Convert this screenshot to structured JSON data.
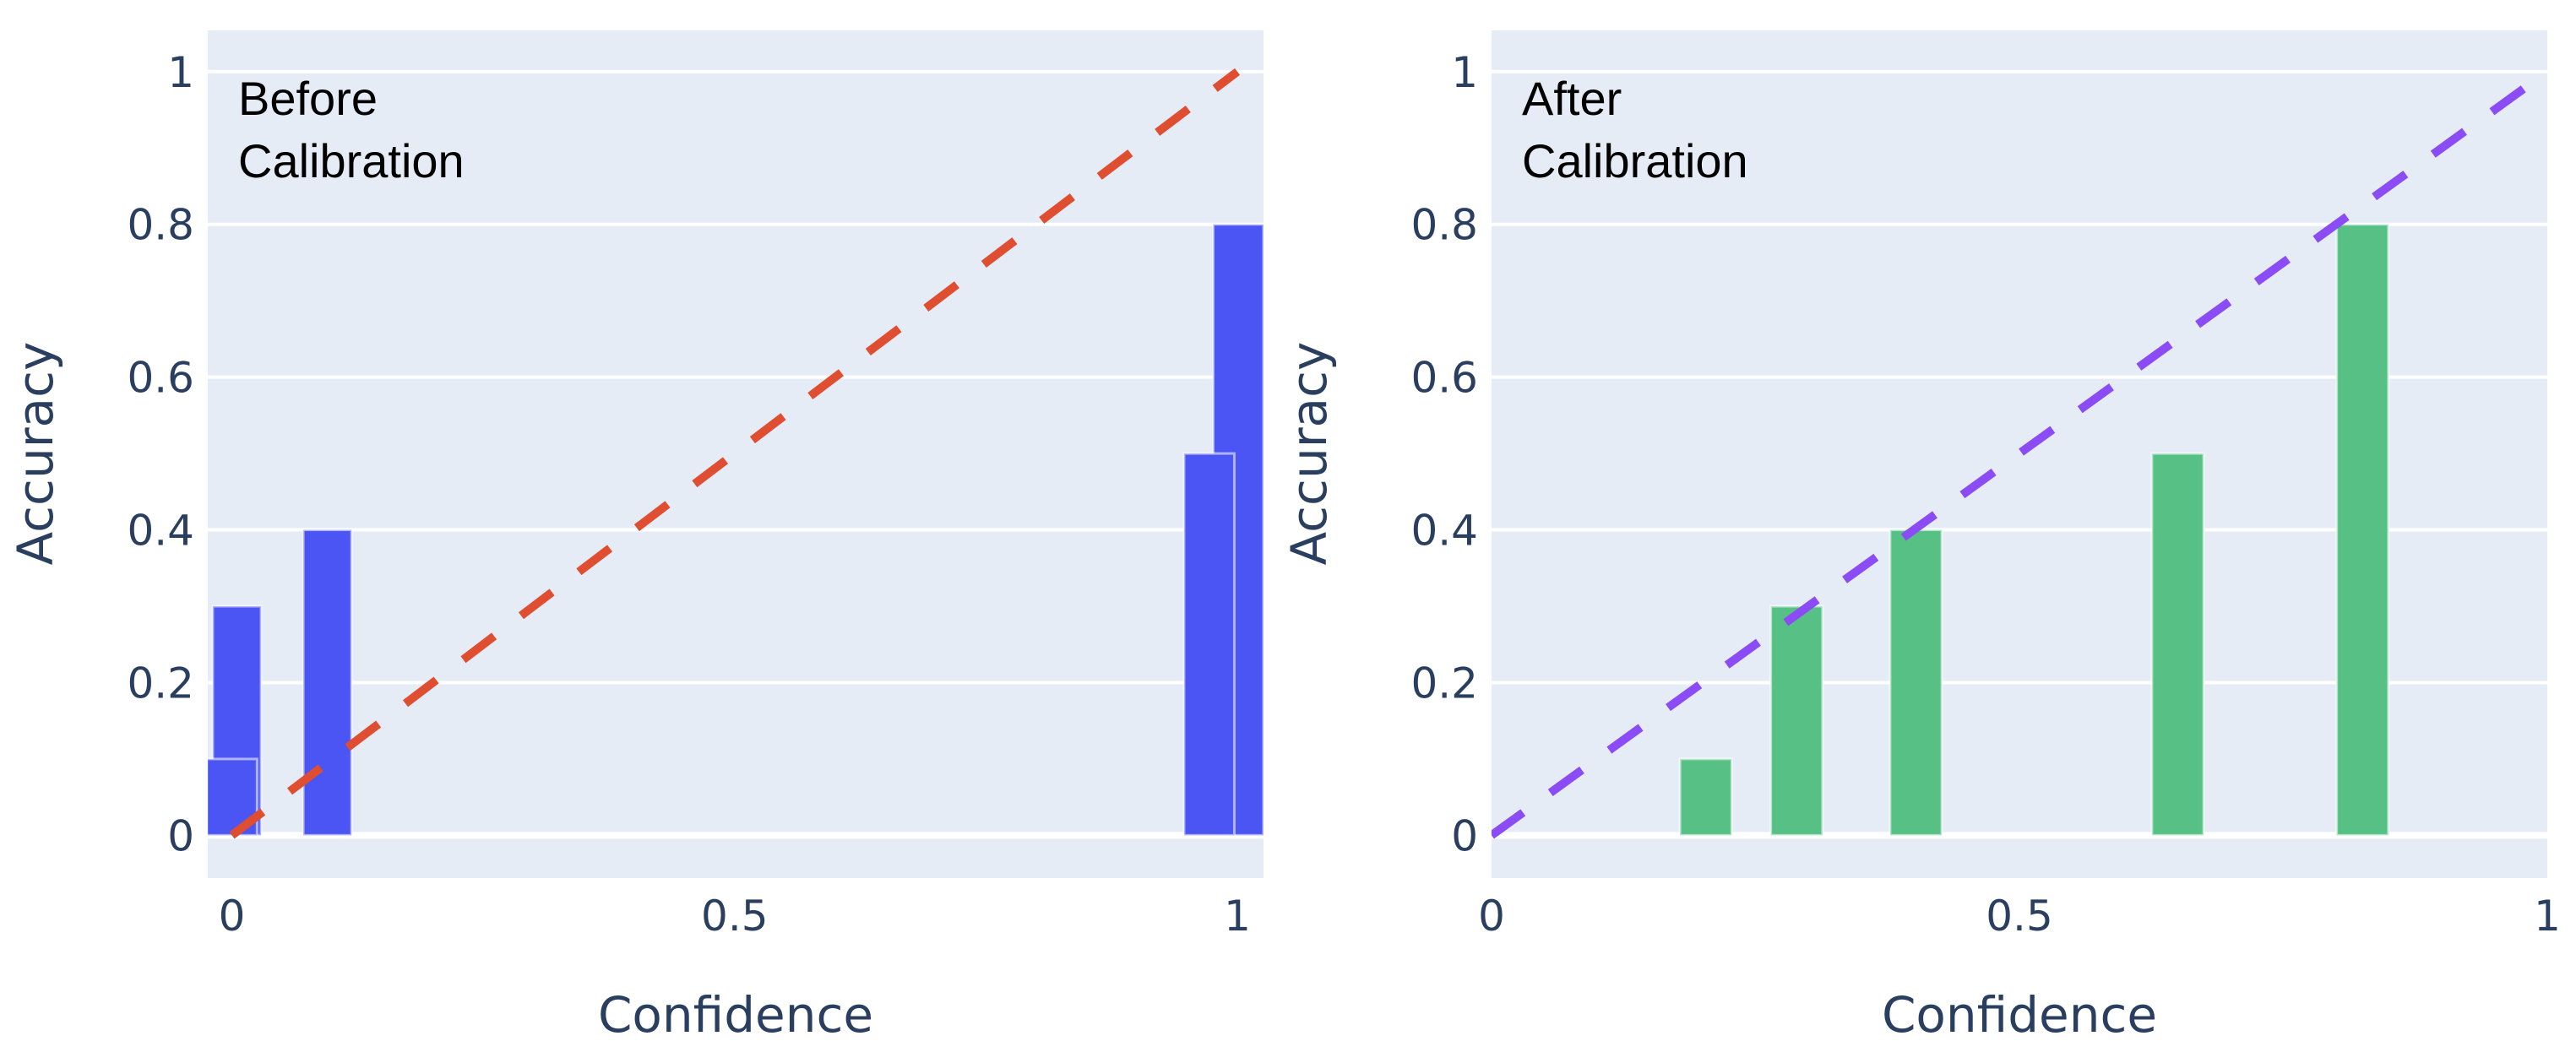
{
  "chart_data": [
    {
      "type": "bar",
      "title": "",
      "annotation": [
        "Before",
        "Calibration"
      ],
      "xlabel": "Confidence",
      "ylabel": "Accuracy",
      "xlim": [
        -0.024,
        1.026
      ],
      "ylim": [
        -0.056,
        1.054
      ],
      "xticks": [
        0,
        0.5,
        1
      ],
      "xtick_labels": [
        "0",
        "0.5",
        "1"
      ],
      "yticks": [
        0,
        0.2,
        0.4,
        0.6,
        0.8,
        1
      ],
      "ytick_labels": [
        "0",
        "0.2",
        "0.4",
        "0.6",
        "0.8",
        "1"
      ],
      "grid": true,
      "bar_color": "#4b55f3",
      "bars": [
        {
          "x": 0.005,
          "width": 0.048,
          "value": 0.3
        },
        {
          "x": 0.0,
          "width": 0.05,
          "value": 0.1
        },
        {
          "x": 0.095,
          "width": 0.048,
          "value": 0.4
        },
        {
          "x": 1.001,
          "width": 0.05,
          "value": 0.8
        },
        {
          "x": 0.972,
          "width": 0.05,
          "value": 0.5
        }
      ],
      "reference_line": {
        "x": [
          0,
          1
        ],
        "y": [
          0,
          1
        ],
        "style": "dashed",
        "color": "#e04e31"
      }
    },
    {
      "type": "bar",
      "title": "",
      "annotation": [
        "After",
        "Calibration"
      ],
      "xlabel": "Confidence",
      "ylabel": "Accuracy",
      "xlim": [
        0,
        1
      ],
      "ylim": [
        -0.056,
        1.054
      ],
      "xticks": [
        0,
        0.5,
        1
      ],
      "xtick_labels": [
        "0",
        "0.5",
        "1"
      ],
      "yticks": [
        0,
        0.2,
        0.4,
        0.6,
        0.8,
        1
      ],
      "ytick_labels": [
        "0",
        "0.2",
        "0.4",
        "0.6",
        "0.8",
        "1"
      ],
      "grid": true,
      "bar_color": "#57c185",
      "bars": [
        {
          "x": 0.203,
          "width": 0.049,
          "value": 0.1
        },
        {
          "x": 0.289,
          "width": 0.049,
          "value": 0.3
        },
        {
          "x": 0.402,
          "width": 0.049,
          "value": 0.4
        },
        {
          "x": 0.65,
          "width": 0.049,
          "value": 0.5
        },
        {
          "x": 0.825,
          "width": 0.049,
          "value": 0.8
        }
      ],
      "reference_line": {
        "x": [
          0,
          1
        ],
        "y": [
          0,
          1
        ],
        "style": "dashed",
        "color": "#8b4cf5"
      }
    }
  ]
}
